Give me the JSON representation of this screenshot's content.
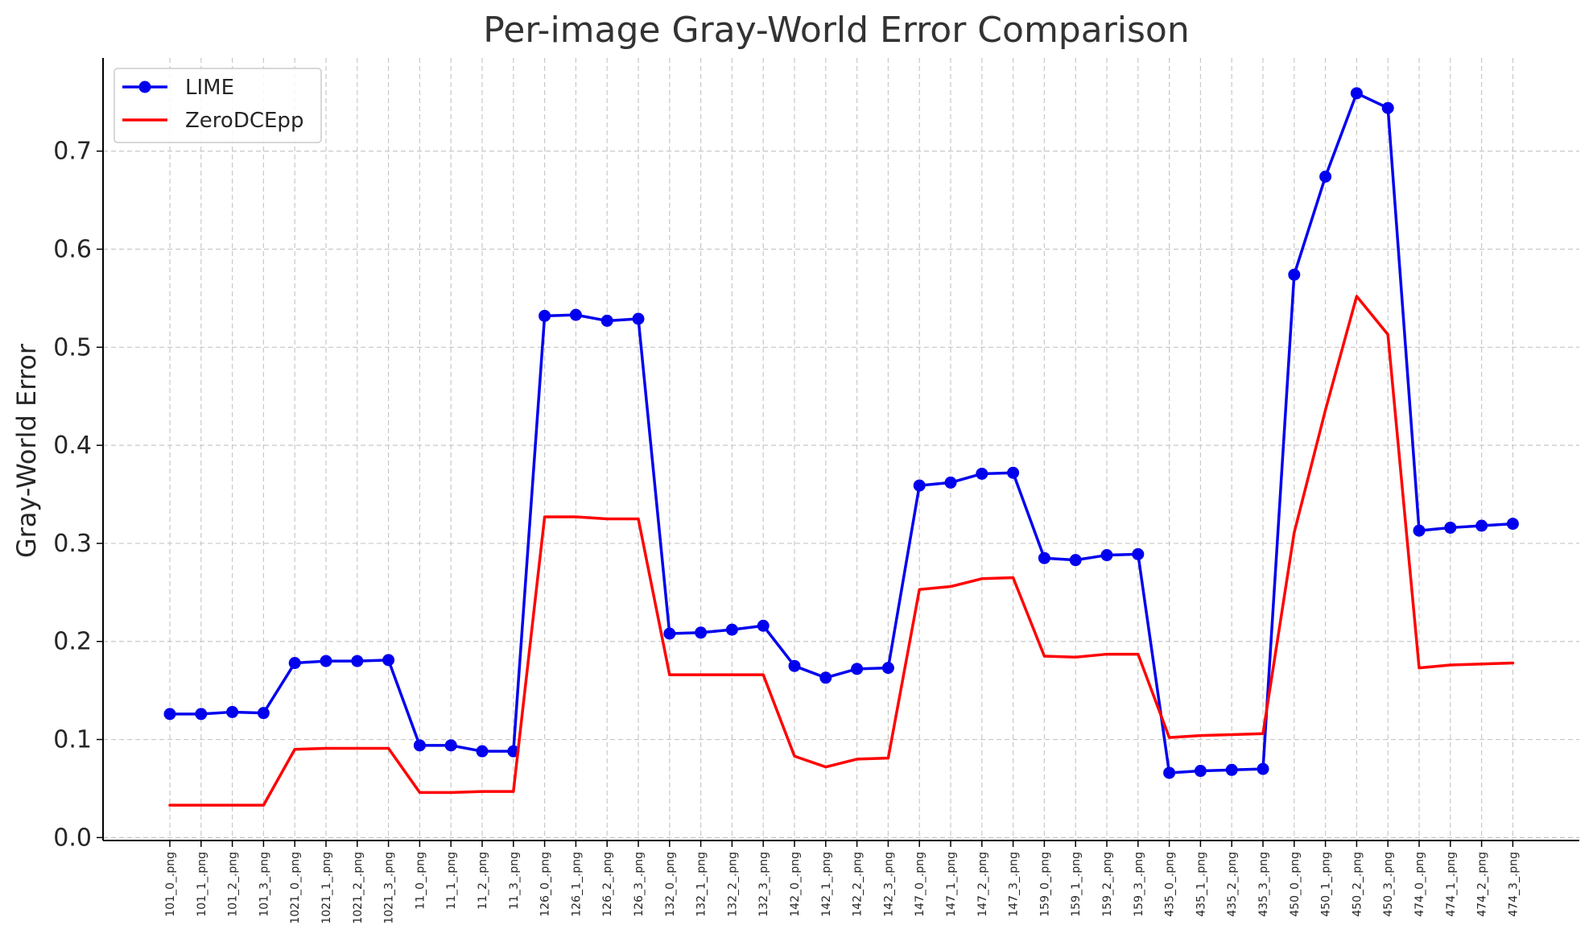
{
  "chart_data": {
    "type": "line",
    "title": "Per-image Gray-World Error Comparison",
    "xlabel": "",
    "ylabel": "Gray-World Error",
    "ylim": [
      -0.003,
      0.795
    ],
    "yticks": [
      0.0,
      0.1,
      0.2,
      0.3,
      0.4,
      0.5,
      0.6,
      0.7
    ],
    "ytick_labels": [
      "0.0",
      "0.1",
      "0.2",
      "0.3",
      "0.4",
      "0.5",
      "0.6",
      "0.7"
    ],
    "grid": true,
    "legend_position": "top-left",
    "categories": [
      "101_0_.png",
      "101_1_.png",
      "101_2_.png",
      "101_3_.png",
      "1021_0_.png",
      "1021_1_.png",
      "1021_2_.png",
      "1021_3_.png",
      "11_0_.png",
      "11_1_.png",
      "11_2_.png",
      "11_3_.png",
      "126_0_.png",
      "126_1_.png",
      "126_2_.png",
      "126_3_.png",
      "132_0_.png",
      "132_1_.png",
      "132_2_.png",
      "132_3_.png",
      "142_0_.png",
      "142_1_.png",
      "142_2_.png",
      "142_3_.png",
      "147_0_.png",
      "147_1_.png",
      "147_2_.png",
      "147_3_.png",
      "159_0_.png",
      "159_1_.png",
      "159_2_.png",
      "159_3_.png",
      "435_0_.png",
      "435_1_.png",
      "435_2_.png",
      "435_3_.png",
      "450_0_.png",
      "450_1_.png",
      "450_2_.png",
      "450_3_.png",
      "474_0_.png",
      "474_1_.png",
      "474_2_.png",
      "474_3_.png"
    ],
    "series": [
      {
        "name": "LIME",
        "color": "#0000ee",
        "marker": "circle",
        "values": [
          0.126,
          0.126,
          0.128,
          0.127,
          0.178,
          0.18,
          0.18,
          0.181,
          0.094,
          0.094,
          0.088,
          0.088,
          0.532,
          0.533,
          0.527,
          0.529,
          0.208,
          0.209,
          0.212,
          0.216,
          0.175,
          0.163,
          0.172,
          0.173,
          0.359,
          0.362,
          0.371,
          0.372,
          0.285,
          0.283,
          0.288,
          0.289,
          0.066,
          0.068,
          0.069,
          0.07,
          0.574,
          0.674,
          0.759,
          0.744,
          0.313,
          0.316,
          0.318,
          0.32
        ]
      },
      {
        "name": "ZeroDCEpp",
        "color": "#ff0000",
        "marker": "none",
        "values": [
          0.033,
          0.033,
          0.033,
          0.033,
          0.09,
          0.091,
          0.091,
          0.091,
          0.046,
          0.046,
          0.047,
          0.047,
          0.327,
          0.327,
          0.325,
          0.325,
          0.166,
          0.166,
          0.166,
          0.166,
          0.083,
          0.072,
          0.08,
          0.081,
          0.253,
          0.256,
          0.264,
          0.265,
          0.185,
          0.184,
          0.187,
          0.187,
          0.102,
          0.104,
          0.105,
          0.106,
          0.311,
          0.436,
          0.552,
          0.513,
          0.173,
          0.176,
          0.177,
          0.178
        ]
      }
    ]
  }
}
